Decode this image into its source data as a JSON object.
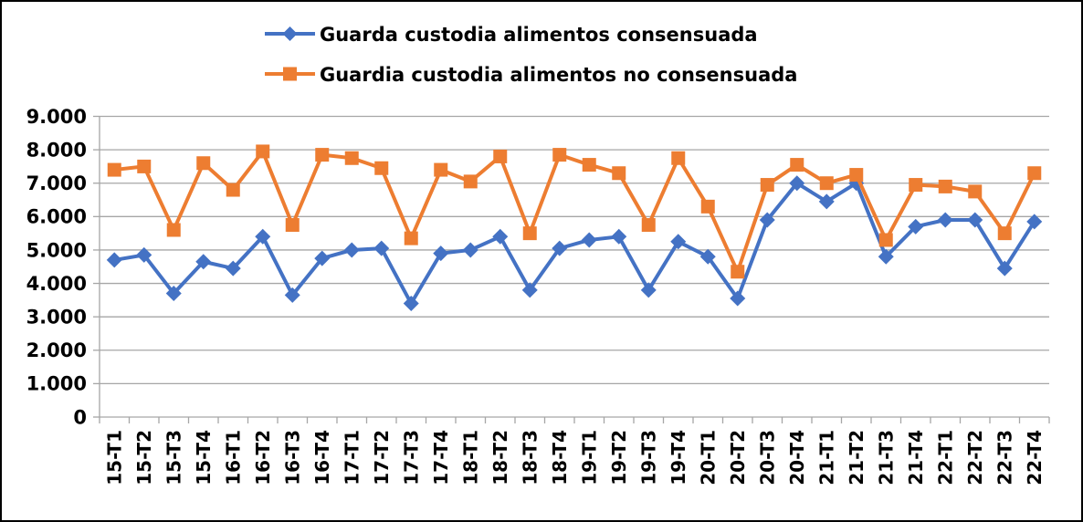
{
  "chart_data": {
    "type": "line",
    "title": "",
    "xlabel": "",
    "ylabel": "",
    "categories": [
      "15-T1",
      "15-T2",
      "15-T3",
      "15-T4",
      "16-T1",
      "16-T2",
      "16-T3",
      "16-T4",
      "17-T1",
      "17-T2",
      "17-T3",
      "17-T4",
      "18-T1",
      "18-T2",
      "18-T3",
      "18-T4",
      "19-T1",
      "19-T2",
      "19-T3",
      "19-T4",
      "20-T1",
      "20-T2",
      "20-T3",
      "20-T4",
      "21-T1",
      "21-T2",
      "21-T3",
      "21-T4",
      "22-T1",
      "22-T2",
      "22-T3",
      "22-T4"
    ],
    "series": [
      {
        "name": "Guarda custodia alimentos consensuada",
        "color": "#4472C4",
        "marker": "diamond",
        "values": [
          4700,
          4850,
          3700,
          4650,
          4450,
          5400,
          3650,
          4750,
          5000,
          5050,
          3400,
          4900,
          5000,
          5400,
          3800,
          5050,
          5300,
          5400,
          3800,
          5250,
          4800,
          3550,
          5900,
          7000,
          6450,
          7000,
          4800,
          5700,
          5900,
          5900,
          4450,
          5850
        ]
      },
      {
        "name": "Guardia custodia alimentos no consensuada",
        "color": "#ED7D31",
        "marker": "square",
        "values": [
          7400,
          7500,
          5600,
          7600,
          6800,
          7950,
          5750,
          7850,
          7750,
          7450,
          5350,
          7400,
          7050,
          7800,
          5500,
          7850,
          7550,
          7300,
          5750,
          7750,
          6300,
          4350,
          6950,
          7550,
          7000,
          7250,
          5300,
          6950,
          6900,
          6750,
          5500,
          7300
        ]
      }
    ],
    "ylim": [
      0,
      9000
    ],
    "ytick_interval": 1000,
    "ytick_labels": [
      "0",
      "1.000",
      "2.000",
      "3.000",
      "4.000",
      "5.000",
      "6.000",
      "7.000",
      "8.000",
      "9.000"
    ],
    "grid": "horizontal-only",
    "legend_position": "top",
    "gridline_color": "#A6A6A6",
    "axis_color": "#A6A6A6",
    "text_color": "#000000",
    "frame_border_color": "#000000"
  }
}
